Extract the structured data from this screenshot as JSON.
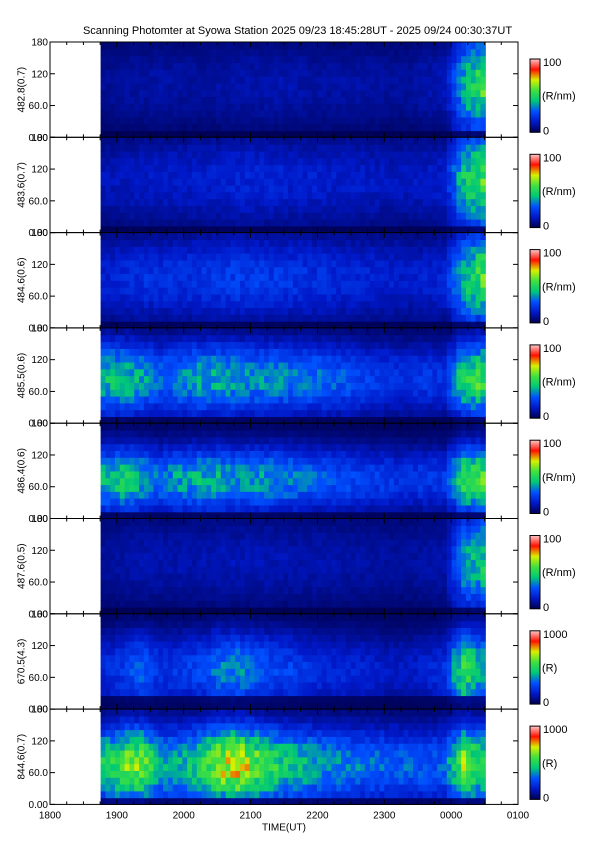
{
  "chart_data": {
    "type": "heatmap",
    "title": "Scanning Photomter at Syowa Station  2025 09/23 18:45:28UT - 2025 09/24 00:30:37UT",
    "xlabel": "TIME(UT)",
    "x_ticks": [
      "1800",
      "1900",
      "2000",
      "2100",
      "2200",
      "2300",
      "0000",
      "0100"
    ],
    "x_range_hours": [
      18,
      25
    ],
    "data_start_hour": 18.757,
    "data_end_hour": 24.51,
    "y_ticks": [
      "0.00",
      "60.0",
      "120",
      "180"
    ],
    "y_range": [
      0,
      180
    ],
    "colormap": [
      "#000050",
      "#0018c8",
      "#0050ff",
      "#00c878",
      "#40e040",
      "#d8f000",
      "#ff1000",
      "#ffc8c8"
    ],
    "panels": [
      {
        "ylabel": "482.8(0.7)",
        "colorbar_max": "100",
        "colorbar_min": "0",
        "colorbar_unit": "(R/nm)",
        "profile": [
          8,
          9,
          10,
          10,
          10,
          9,
          10,
          11,
          11,
          11,
          11,
          10,
          10,
          10,
          10,
          9,
          9,
          11,
          12,
          40,
          55
        ],
        "lat_peak": 100,
        "lat_width": 120,
        "dark_band": [
          0,
          12
        ]
      },
      {
        "ylabel": "483.6(0.7)",
        "colorbar_max": "100",
        "colorbar_min": "0",
        "colorbar_unit": "(R/nm)",
        "profile": [
          12,
          13,
          14,
          14,
          15,
          15,
          16,
          17,
          17,
          17,
          16,
          16,
          15,
          15,
          14,
          13,
          13,
          14,
          15,
          45,
          55
        ],
        "lat_peak": 100,
        "lat_width": 120,
        "dark_band": [
          0,
          12
        ]
      },
      {
        "ylabel": "484.6(0.6)",
        "colorbar_max": "100",
        "colorbar_min": "0",
        "colorbar_unit": "(R/nm)",
        "profile": [
          16,
          18,
          20,
          20,
          20,
          21,
          22,
          23,
          23,
          22,
          21,
          20,
          19,
          18,
          17,
          16,
          15,
          16,
          17,
          45,
          55
        ],
        "lat_peak": 95,
        "lat_width": 110,
        "dark_band": [
          0,
          12
        ]
      },
      {
        "ylabel": "485.5(0.6)",
        "colorbar_max": "100",
        "colorbar_min": "0",
        "colorbar_unit": "(R/nm)",
        "profile": [
          42,
          45,
          38,
          30,
          34,
          40,
          40,
          38,
          36,
          36,
          34,
          32,
          30,
          28,
          24,
          22,
          20,
          22,
          20,
          50,
          55
        ],
        "lat_peak": 85,
        "lat_width": 90,
        "dark_band": [
          0,
          12
        ]
      },
      {
        "ylabel": "486.4(0.6)",
        "colorbar_max": "100",
        "colorbar_min": "0",
        "colorbar_unit": "(R/nm)",
        "profile": [
          40,
          46,
          40,
          32,
          38,
          40,
          40,
          36,
          38,
          36,
          34,
          30,
          28,
          26,
          24,
          22,
          20,
          22,
          22,
          55,
          55
        ],
        "lat_peak": 75,
        "lat_width": 80,
        "dark_band": [
          0,
          18
        ]
      },
      {
        "ylabel": "487.6(0.5)",
        "colorbar_max": "100",
        "colorbar_min": "0",
        "colorbar_unit": "(R/nm)",
        "profile": [
          9,
          10,
          11,
          11,
          11,
          11,
          12,
          12,
          12,
          12,
          11,
          11,
          11,
          10,
          10,
          9,
          9,
          10,
          11,
          38,
          45
        ],
        "lat_peak": 100,
        "lat_width": 120,
        "dark_band": [
          0,
          12
        ]
      },
      {
        "ylabel": "670.5(4.3)",
        "colorbar_max": "1000",
        "colorbar_min": "0",
        "colorbar_unit": "(R)",
        "profile": [
          18,
          22,
          30,
          20,
          22,
          24,
          32,
          36,
          30,
          26,
          24,
          20,
          18,
          18,
          16,
          14,
          14,
          16,
          20,
          55,
          40
        ],
        "lat_peak": 75,
        "lat_width": 95,
        "dark_band": [
          0,
          20
        ]
      },
      {
        "ylabel": "844.6(0.7)",
        "colorbar_max": "1000",
        "colorbar_min": "0",
        "colorbar_unit": "(R)",
        "profile": [
          45,
          58,
          62,
          40,
          40,
          48,
          64,
          74,
          60,
          50,
          44,
          40,
          36,
          34,
          32,
          30,
          30,
          28,
          30,
          64,
          50
        ],
        "lat_peak": 75,
        "lat_width": 95,
        "dark_band": [
          0,
          8
        ]
      }
    ]
  }
}
